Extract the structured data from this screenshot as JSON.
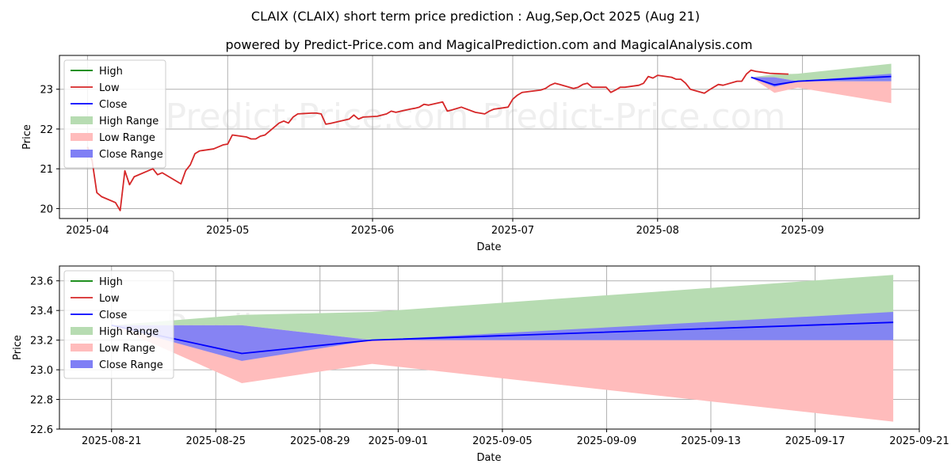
{
  "title": "CLAIX (CLAIX) short term price prediction : Aug,Sep,Oct 2025 (Aug 21)",
  "subtitle": "powered by Predict-Price.com and MagicalPrediction.com and MagicalAnalysis.com",
  "watermark": "Predict-Price.com",
  "colors": {
    "high": "#008000",
    "low": "#d62728",
    "close": "#0000ff",
    "high_range": "#b7dcb2",
    "low_range": "#ffbcbc",
    "close_range": "#7f7ff5"
  },
  "legend": {
    "high": "High",
    "low": "Low",
    "close": "Close",
    "high_range": "High Range",
    "low_range": "Low Range",
    "close_range": "Close Range"
  },
  "chart_data": [
    {
      "type": "line",
      "xlabel": "Date",
      "ylabel": "Price",
      "xlim": [
        "2025-03-26",
        "2025-09-26"
      ],
      "ylim": [
        19.75,
        23.85
      ],
      "x_ticks": [
        "2025-04",
        "2025-05",
        "2025-06",
        "2025-07",
        "2025-08",
        "2025-09"
      ],
      "y_ticks": [
        "20",
        "21",
        "22",
        "23"
      ],
      "legend_position": "top-left",
      "grid": true,
      "series": [
        {
          "name": "Low",
          "points": [
            [
              "2025-04-01",
              21.55
            ],
            [
              "2025-04-02",
              21.2
            ],
            [
              "2025-04-03",
              20.4
            ],
            [
              "2025-04-04",
              20.3
            ],
            [
              "2025-04-07",
              20.15
            ],
            [
              "2025-04-08",
              19.95
            ],
            [
              "2025-04-09",
              20.95
            ],
            [
              "2025-04-10",
              20.6
            ],
            [
              "2025-04-11",
              20.8
            ],
            [
              "2025-04-14",
              20.95
            ],
            [
              "2025-04-15",
              21.0
            ],
            [
              "2025-04-16",
              20.85
            ],
            [
              "2025-04-17",
              20.9
            ],
            [
              "2025-04-21",
              20.62
            ],
            [
              "2025-04-22",
              20.95
            ],
            [
              "2025-04-23",
              21.1
            ],
            [
              "2025-04-24",
              21.38
            ],
            [
              "2025-04-25",
              21.45
            ],
            [
              "2025-04-28",
              21.5
            ],
            [
              "2025-04-29",
              21.55
            ],
            [
              "2025-04-30",
              21.6
            ],
            [
              "2025-05-01",
              21.62
            ],
            [
              "2025-05-02",
              21.85
            ],
            [
              "2025-05-05",
              21.8
            ],
            [
              "2025-05-06",
              21.75
            ],
            [
              "2025-05-07",
              21.75
            ],
            [
              "2025-05-08",
              21.82
            ],
            [
              "2025-05-09",
              21.85
            ],
            [
              "2025-05-12",
              22.15
            ],
            [
              "2025-05-13",
              22.2
            ],
            [
              "2025-05-14",
              22.15
            ],
            [
              "2025-05-15",
              22.3
            ],
            [
              "2025-05-16",
              22.38
            ],
            [
              "2025-05-19",
              22.4
            ],
            [
              "2025-05-20",
              22.4
            ],
            [
              "2025-05-21",
              22.38
            ],
            [
              "2025-05-22",
              22.12
            ],
            [
              "2025-05-23",
              22.14
            ],
            [
              "2025-05-27",
              22.25
            ],
            [
              "2025-05-28",
              22.35
            ],
            [
              "2025-05-29",
              22.25
            ],
            [
              "2025-05-30",
              22.3
            ],
            [
              "2025-06-02",
              22.32
            ],
            [
              "2025-06-03",
              22.35
            ],
            [
              "2025-06-04",
              22.38
            ],
            [
              "2025-06-05",
              22.45
            ],
            [
              "2025-06-06",
              22.42
            ],
            [
              "2025-06-09",
              22.5
            ],
            [
              "2025-06-10",
              22.52
            ],
            [
              "2025-06-11",
              22.55
            ],
            [
              "2025-06-12",
              22.62
            ],
            [
              "2025-06-13",
              22.6
            ],
            [
              "2025-06-16",
              22.68
            ],
            [
              "2025-06-17",
              22.45
            ],
            [
              "2025-06-18",
              22.48
            ],
            [
              "2025-06-20",
              22.55
            ],
            [
              "2025-06-23",
              22.42
            ],
            [
              "2025-06-24",
              22.4
            ],
            [
              "2025-06-25",
              22.38
            ],
            [
              "2025-06-26",
              22.45
            ],
            [
              "2025-06-27",
              22.5
            ],
            [
              "2025-06-30",
              22.55
            ],
            [
              "2025-07-01",
              22.75
            ],
            [
              "2025-07-02",
              22.85
            ],
            [
              "2025-07-03",
              22.92
            ],
            [
              "2025-07-07",
              22.98
            ],
            [
              "2025-07-08",
              23.02
            ],
            [
              "2025-07-09",
              23.1
            ],
            [
              "2025-07-10",
              23.15
            ],
            [
              "2025-07-11",
              23.12
            ],
            [
              "2025-07-14",
              23.02
            ],
            [
              "2025-07-15",
              23.05
            ],
            [
              "2025-07-16",
              23.12
            ],
            [
              "2025-07-17",
              23.15
            ],
            [
              "2025-07-18",
              23.05
            ],
            [
              "2025-07-21",
              23.05
            ],
            [
              "2025-07-22",
              22.92
            ],
            [
              "2025-07-23",
              22.98
            ],
            [
              "2025-07-24",
              23.05
            ],
            [
              "2025-07-25",
              23.05
            ],
            [
              "2025-07-28",
              23.1
            ],
            [
              "2025-07-29",
              23.15
            ],
            [
              "2025-07-30",
              23.32
            ],
            [
              "2025-07-31",
              23.28
            ],
            [
              "2025-08-01",
              23.35
            ],
            [
              "2025-08-04",
              23.3
            ],
            [
              "2025-08-05",
              23.25
            ],
            [
              "2025-08-06",
              23.25
            ],
            [
              "2025-08-07",
              23.15
            ],
            [
              "2025-08-08",
              23.0
            ],
            [
              "2025-08-11",
              22.9
            ],
            [
              "2025-08-12",
              22.98
            ],
            [
              "2025-08-13",
              23.05
            ],
            [
              "2025-08-14",
              23.12
            ],
            [
              "2025-08-15",
              23.1
            ],
            [
              "2025-08-18",
              23.2
            ],
            [
              "2025-08-19",
              23.2
            ],
            [
              "2025-08-20",
              23.38
            ],
            [
              "2025-08-21",
              23.48
            ],
            [
              "2025-08-22",
              23.45
            ],
            [
              "2025-08-25",
              23.4
            ],
            [
              "2025-08-29",
              23.38
            ]
          ]
        },
        {
          "name": "Close",
          "points": [
            [
              "2025-08-21",
              23.3
            ],
            [
              "2025-08-26",
              23.11
            ],
            [
              "2025-08-31",
              23.2
            ],
            [
              "2025-09-20",
              23.32
            ]
          ]
        }
      ],
      "ranges": [
        {
          "name": "High Range",
          "points": [
            [
              "2025-08-21",
              23.3,
              23.3
            ],
            [
              "2025-08-26",
              23.3,
              23.37
            ],
            [
              "2025-08-31",
              23.2,
              23.39
            ],
            [
              "2025-09-20",
              23.2,
              23.64
            ]
          ]
        },
        {
          "name": "Low Range",
          "points": [
            [
              "2025-08-21",
              23.3,
              23.3
            ],
            [
              "2025-08-26",
              22.91,
              23.3
            ],
            [
              "2025-08-31",
              23.04,
              23.2
            ],
            [
              "2025-09-20",
              22.65,
              23.2
            ]
          ]
        },
        {
          "name": "Close Range",
          "points": [
            [
              "2025-08-21",
              23.3,
              23.3
            ],
            [
              "2025-08-26",
              23.06,
              23.3
            ],
            [
              "2025-08-31",
              23.2,
              23.2
            ],
            [
              "2025-09-20",
              23.2,
              23.39
            ]
          ]
        }
      ]
    },
    {
      "type": "line",
      "xlabel": "Date",
      "ylabel": "Price",
      "xlim": [
        "2025-08-19",
        "2025-09-21"
      ],
      "ylim": [
        22.6,
        23.7
      ],
      "x_ticks": [
        "2025-08-21",
        "2025-08-25",
        "2025-08-29",
        "2025-09-01",
        "2025-09-05",
        "2025-09-09",
        "2025-09-13",
        "2025-09-17",
        "2025-09-21"
      ],
      "y_ticks": [
        "22.6",
        "22.8",
        "23.0",
        "23.2",
        "23.4",
        "23.6"
      ],
      "legend_position": "top-left",
      "grid": true,
      "series": [
        {
          "name": "Close",
          "points": [
            [
              "2025-08-21",
              23.3
            ],
            [
              "2025-08-26",
              23.11
            ],
            [
              "2025-08-31",
              23.2
            ],
            [
              "2025-09-20",
              23.32
            ]
          ]
        }
      ],
      "ranges": [
        {
          "name": "High Range",
          "points": [
            [
              "2025-08-21",
              23.3,
              23.3
            ],
            [
              "2025-08-26",
              23.3,
              23.37
            ],
            [
              "2025-08-31",
              23.2,
              23.39
            ],
            [
              "2025-09-20",
              23.2,
              23.64
            ]
          ]
        },
        {
          "name": "Low Range",
          "points": [
            [
              "2025-08-21",
              23.3,
              23.3
            ],
            [
              "2025-08-26",
              22.91,
              23.3
            ],
            [
              "2025-08-31",
              23.04,
              23.2
            ],
            [
              "2025-09-20",
              22.65,
              23.2
            ]
          ]
        },
        {
          "name": "Close Range",
          "points": [
            [
              "2025-08-21",
              23.3,
              23.3
            ],
            [
              "2025-08-26",
              23.06,
              23.3
            ],
            [
              "2025-08-31",
              23.2,
              23.2
            ],
            [
              "2025-09-20",
              23.2,
              23.39
            ]
          ]
        }
      ]
    }
  ]
}
